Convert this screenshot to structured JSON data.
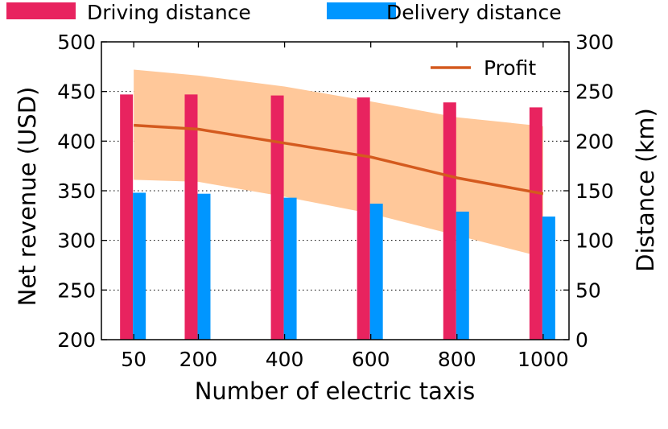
{
  "chart_data": {
    "type": "bar",
    "xlabel": "Number of electric taxis",
    "ylabel_left": "Net revenue (USD)",
    "ylabel_right": "Distance (km)",
    "categories": [
      "50",
      "200",
      "400",
      "600",
      "800",
      "1000"
    ],
    "x": [
      50,
      200,
      400,
      600,
      800,
      1000
    ],
    "ylim_left": [
      200,
      500
    ],
    "ylim_right": [
      0,
      300
    ],
    "left_ticks": [
      "200",
      "250",
      "300",
      "350",
      "400",
      "450",
      "500"
    ],
    "right_ticks": [
      "0",
      "50",
      "100",
      "150",
      "200",
      "250",
      "300"
    ],
    "grid": "horizontal dotted",
    "legend_bars": [
      "Driving distance",
      "Delivery distance"
    ],
    "legend_line": "Profit",
    "legend_line_placement": "top-right",
    "legend_bars_placement": "above plot",
    "bar_series": [
      {
        "name": "Driving distance",
        "axis": "right",
        "color": "#e8235f",
        "values": [
          247,
          247,
          246,
          244,
          239,
          234
        ]
      },
      {
        "name": "Delivery distance",
        "axis": "right",
        "color": "#0096ff",
        "values": [
          148,
          147,
          143,
          137,
          129,
          124
        ]
      }
    ],
    "line_series": {
      "name": "Profit",
      "axis": "left",
      "color": "#d45a1e",
      "values": [
        416,
        412,
        398,
        384,
        363,
        347
      ],
      "band_upper": [
        472,
        466,
        455,
        440,
        424,
        415
      ],
      "band_lower": [
        361,
        359,
        344,
        327,
        305,
        283
      ],
      "band_color": "#ffc89a"
    }
  }
}
